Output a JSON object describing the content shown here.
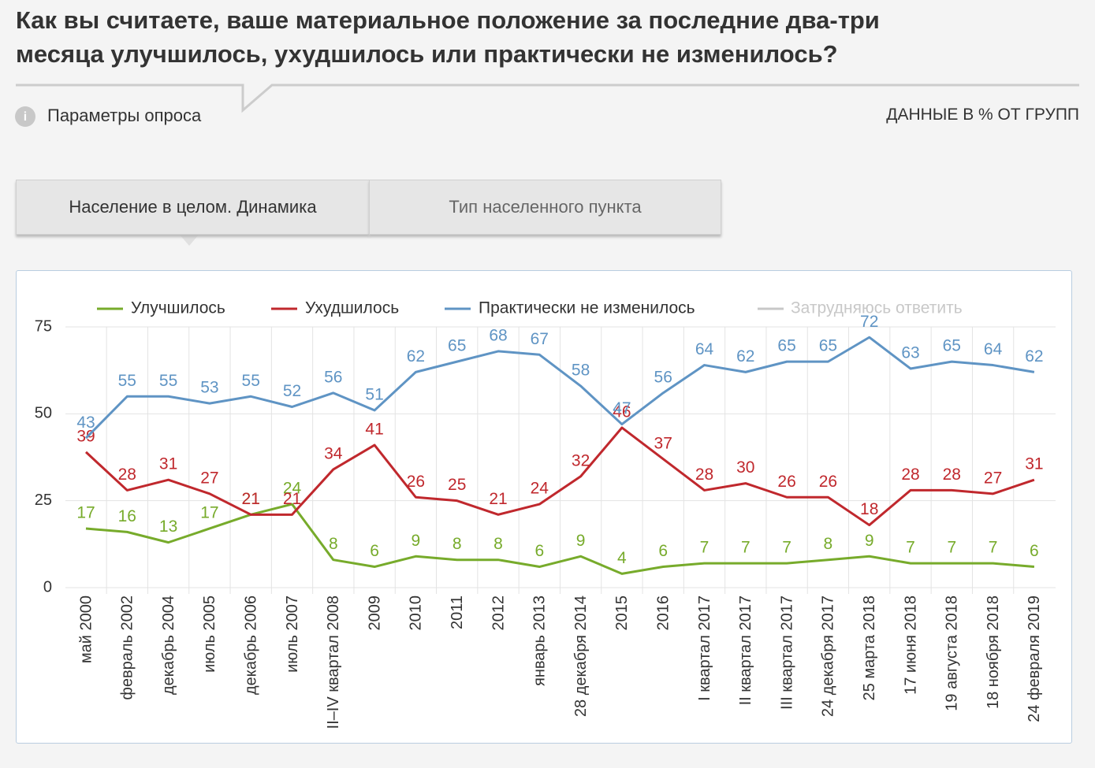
{
  "header": {
    "title_lines": [
      "Как вы считаете, ваше материальное положение за последние два-три",
      "месяца улучшилось, ухудшилось или практически не изменилось?"
    ],
    "params_label": "Параметры опроса",
    "units_note": "ДАННЫЕ В % ОТ ГРУПП"
  },
  "tabs": [
    "Население в целом. Динамика",
    "Тип населенного пункта"
  ],
  "chart_data": {
    "type": "line",
    "categories": [
      "май 2000",
      "февраль 2002",
      "декабрь 2004",
      "июль 2005",
      "декабрь 2006",
      "июль 2007",
      "II–IV квартал 2008",
      "2009",
      "2010",
      "2011",
      "2012",
      "январь 2013",
      "28 декабря 2014",
      "2015",
      "2016",
      "I квартал 2017",
      "II квартал 2017",
      "III квартал 2017",
      "24 декабря 2017",
      "25 марта 2018",
      "17 июня 2018",
      "19 августа 2018",
      "18 ноября 2018",
      "24 февраля 2019"
    ],
    "series": [
      {
        "name": "Улучшилось",
        "color": "#77ab2b",
        "values": [
          17,
          16,
          13,
          17,
          21,
          24,
          8,
          6,
          9,
          8,
          8,
          6,
          9,
          4,
          6,
          7,
          7,
          7,
          8,
          9,
          7,
          7,
          7,
          6
        ]
      },
      {
        "name": "Ухудшилось",
        "color": "#c0282d",
        "values": [
          39,
          28,
          31,
          27,
          21,
          21,
          34,
          41,
          26,
          25,
          21,
          24,
          32,
          46,
          37,
          28,
          30,
          26,
          26,
          18,
          28,
          28,
          27,
          31
        ]
      },
      {
        "name": "Практически не изменилось",
        "color": "#5f94c4",
        "values": [
          43,
          55,
          55,
          53,
          55,
          52,
          56,
          51,
          62,
          65,
          68,
          67,
          58,
          47,
          56,
          64,
          62,
          65,
          65,
          72,
          63,
          65,
          64,
          62
        ]
      }
    ],
    "legend_disabled": [
      {
        "name": "Затрудняюсь ответить",
        "color": "#c8c8c8"
      }
    ],
    "ylim": [
      0,
      75
    ],
    "yticks": [
      0,
      25,
      50,
      75
    ],
    "grid": true
  }
}
